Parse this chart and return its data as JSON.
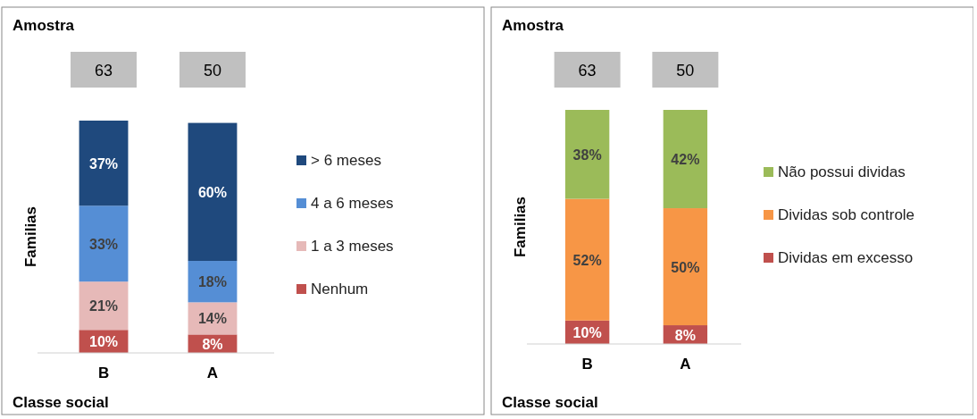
{
  "chart_data": [
    {
      "type": "bar",
      "title": "Amostra",
      "xlabel": "Classe social",
      "ylabel": "Familias",
      "categories": [
        "B",
        "A"
      ],
      "stacked": true,
      "legend": "right",
      "annotations": [
        "63",
        "50"
      ],
      "series": [
        {
          "name": "Nenhum",
          "color": "#c0504d",
          "values": [
            10,
            8
          ],
          "value_labels": [
            "10%",
            "8%"
          ]
        },
        {
          "name": "1 a 3 meses",
          "color": "#e6b9b8",
          "values": [
            21,
            14
          ],
          "value_labels": [
            "21%",
            "14%"
          ]
        },
        {
          "name": "4 a 6 meses",
          "color": "#558ed5",
          "values": [
            33,
            18
          ],
          "value_labels": [
            "33%",
            "18%"
          ]
        },
        {
          "name": "> 6  meses",
          "color": "#1f497d",
          "values": [
            37,
            60
          ],
          "value_labels": [
            "37%",
            "60%"
          ]
        }
      ]
    },
    {
      "type": "bar",
      "title": "Amostra",
      "xlabel": "Classe social",
      "ylabel": "Familias",
      "categories": [
        "B",
        "A"
      ],
      "stacked": true,
      "legend": "right",
      "annotations": [
        "63",
        "50"
      ],
      "series": [
        {
          "name": "Dividas em excesso",
          "color": "#c0504d",
          "values": [
            10,
            8
          ],
          "value_labels": [
            "10%",
            "8%"
          ]
        },
        {
          "name": "Dividas sob controle",
          "color": "#f79646",
          "values": [
            52,
            50
          ],
          "value_labels": [
            "52%",
            "50%"
          ]
        },
        {
          "name": "Não possui dividas",
          "color": "#9bbb59",
          "values": [
            38,
            42
          ],
          "value_labels": [
            "38%",
            "42%"
          ]
        }
      ]
    }
  ]
}
